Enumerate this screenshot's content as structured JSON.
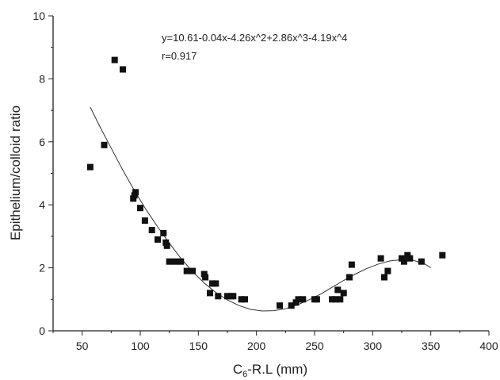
{
  "chart_data": {
    "type": "scatter",
    "title": "",
    "xlabel_main": "C",
    "xlabel_sub": "6",
    "xlabel_rest": "-R.L (mm)",
    "ylabel": "Epithelium/colloid ratio",
    "xlim": [
      25,
      400
    ],
    "ylim": [
      0,
      10
    ],
    "x_ticks": [
      50,
      100,
      150,
      200,
      250,
      300,
      350,
      400
    ],
    "y_ticks": [
      0,
      2,
      4,
      6,
      8,
      10
    ],
    "grid": false,
    "annotations": [
      "y=10.61-0.04x-4.26x^2+2.86x^3-4.19x^4",
      "r=0.917"
    ],
    "series": [
      {
        "kind": "scatter",
        "marker": "square",
        "color": "#111111",
        "x": [
          57,
          69,
          78,
          85,
          94,
          95,
          96,
          100,
          104,
          110,
          115,
          120,
          122,
          123,
          125,
          130,
          135,
          140,
          145,
          155,
          156,
          160,
          162,
          165,
          167,
          175,
          178,
          180,
          187,
          190,
          220,
          230,
          234,
          236,
          240,
          250,
          252,
          265,
          268,
          270,
          272,
          275,
          280,
          282,
          307,
          310,
          313,
          325,
          327,
          330,
          332,
          342,
          360
        ],
        "y": [
          5.2,
          5.9,
          8.6,
          8.3,
          4.2,
          4.3,
          4.4,
          3.9,
          3.5,
          3.2,
          2.9,
          3.1,
          2.8,
          2.7,
          2.2,
          2.2,
          2.2,
          1.9,
          1.9,
          1.8,
          1.7,
          1.2,
          1.5,
          1.5,
          1.1,
          1.1,
          1.1,
          1.1,
          1.0,
          1.0,
          0.8,
          0.8,
          0.9,
          1.0,
          1.0,
          1.0,
          1.0,
          1.0,
          1.0,
          1.3,
          1.0,
          1.2,
          1.7,
          2.1,
          2.3,
          1.7,
          1.9,
          2.3,
          2.2,
          2.4,
          2.3,
          2.2,
          2.4
        ]
      },
      {
        "kind": "line",
        "color": "#333333",
        "x": [
          57,
          65,
          75,
          85,
          95,
          105,
          115,
          125,
          135,
          145,
          155,
          165,
          175,
          185,
          195,
          205,
          215,
          225,
          235,
          245,
          255,
          265,
          275,
          285,
          295,
          305,
          315,
          325,
          335,
          345,
          350
        ],
        "y": [
          7.1,
          6.5,
          5.8,
          5.1,
          4.45,
          3.85,
          3.3,
          2.78,
          2.3,
          1.88,
          1.52,
          1.22,
          0.98,
          0.8,
          0.68,
          0.63,
          0.64,
          0.7,
          0.82,
          0.98,
          1.16,
          1.38,
          1.6,
          1.8,
          1.98,
          2.12,
          2.22,
          2.26,
          2.24,
          2.12,
          2.0
        ]
      }
    ]
  }
}
